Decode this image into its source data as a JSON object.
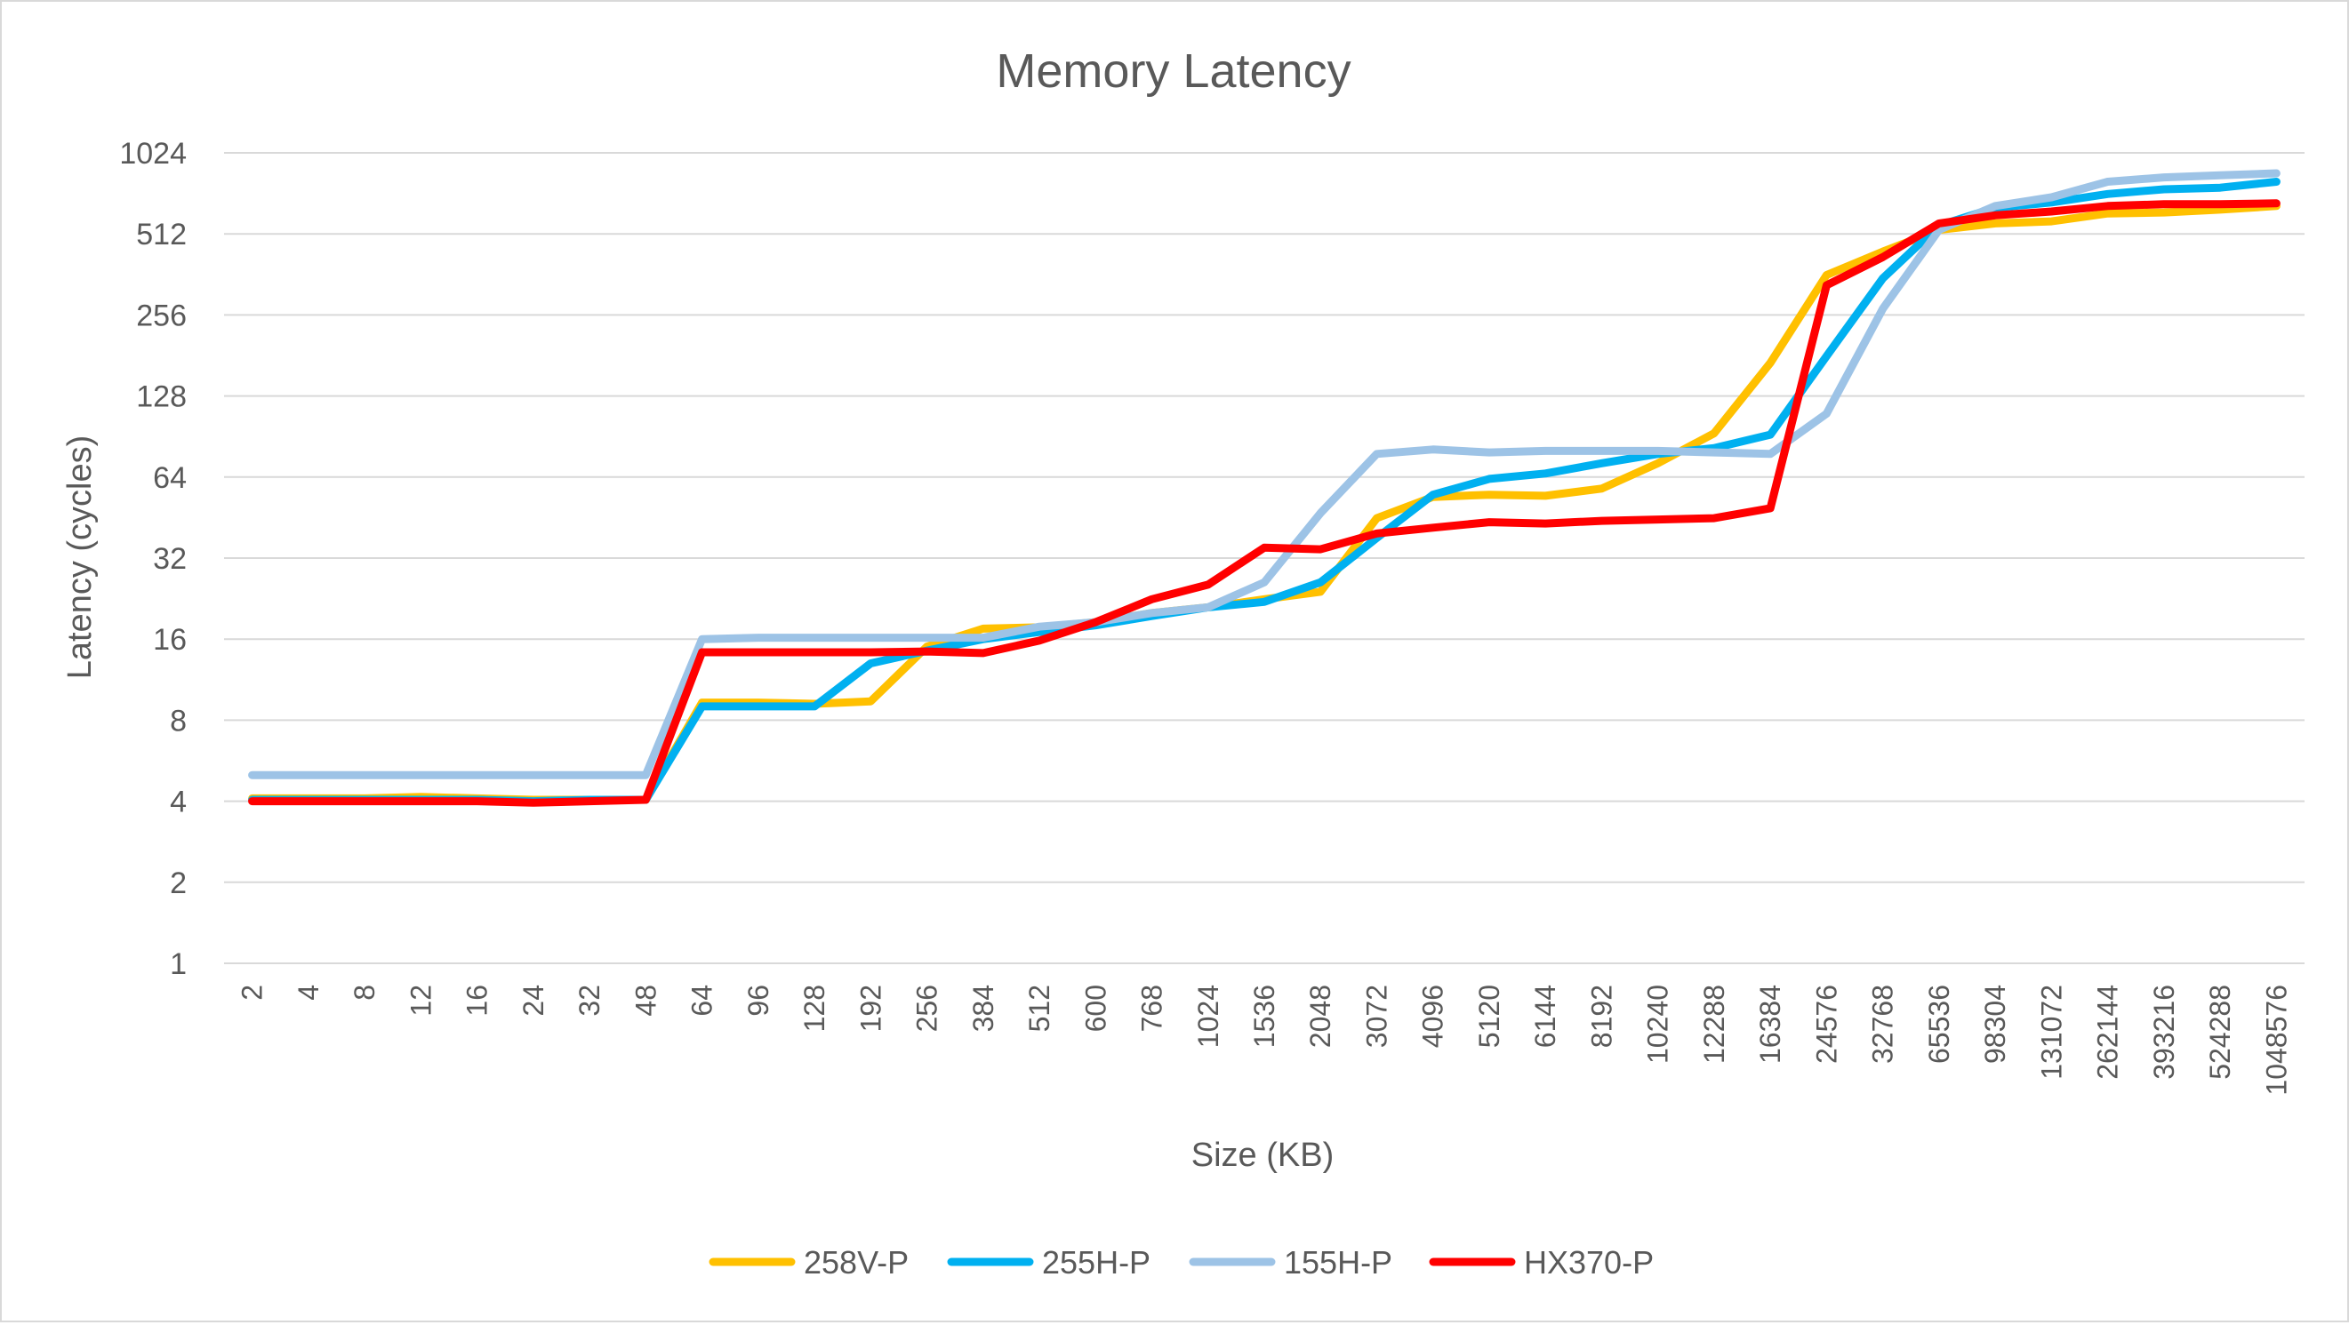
{
  "chart_data": {
    "type": "line",
    "title": "Memory Latency",
    "xlabel": "Size (KB)",
    "ylabel": "Latency (cycles)",
    "y_scale": "log2",
    "ylim": [
      1,
      1024
    ],
    "y_ticks": [
      1,
      2,
      4,
      8,
      16,
      32,
      64,
      128,
      256,
      512,
      1024
    ],
    "grid": true,
    "legend_position": "bottom",
    "categories": [
      "2",
      "4",
      "8",
      "12",
      "16",
      "24",
      "32",
      "48",
      "64",
      "96",
      "128",
      "192",
      "256",
      "384",
      "512",
      "600",
      "768",
      "1024",
      "1536",
      "2048",
      "3072",
      "4096",
      "5120",
      "6144",
      "8192",
      "10240",
      "12288",
      "16384",
      "24576",
      "32768",
      "65536",
      "98304",
      "131072",
      "262144",
      "393216",
      "524288",
      "1048576"
    ],
    "series": [
      {
        "name": "258V-P",
        "color": "#FFC000",
        "values": [
          4.1,
          4.1,
          4.1,
          4.15,
          4.1,
          4.05,
          4.05,
          4.05,
          9.3,
          9.3,
          9.2,
          9.4,
          15.0,
          17.5,
          17.7,
          18.5,
          20.0,
          21.0,
          22.5,
          24.0,
          45.0,
          54.0,
          55.0,
          54.5,
          58.0,
          72.0,
          93.0,
          170.0,
          360.0,
          440.0,
          530.0,
          560.0,
          570.0,
          610.0,
          615.0,
          630.0,
          650.0
        ]
      },
      {
        "name": "255H-P",
        "color": "#00B0F0",
        "values": [
          4.05,
          4.05,
          4.05,
          4.05,
          4.05,
          4.0,
          4.05,
          4.05,
          9.0,
          9.0,
          9.0,
          13.0,
          14.5,
          16.0,
          17.0,
          18.0,
          19.5,
          21.0,
          22.0,
          26.0,
          38.0,
          55.0,
          63.0,
          66.0,
          72.0,
          78.0,
          82.0,
          92.0,
          180.0,
          350.0,
          550.0,
          640.0,
          670.0,
          720.0,
          750.0,
          760.0,
          800.0
        ]
      },
      {
        "name": "155H-P",
        "color": "#9DC3E6",
        "values": [
          5.0,
          5.0,
          5.0,
          5.0,
          5.0,
          5.0,
          5.0,
          5.0,
          16.0,
          16.2,
          16.2,
          16.2,
          16.2,
          16.2,
          17.8,
          18.5,
          20.0,
          21.0,
          26.0,
          47.0,
          78.0,
          81.0,
          79.0,
          80.0,
          80.0,
          80.0,
          79.0,
          78.0,
          110.0,
          270.0,
          530.0,
          650.0,
          700.0,
          800.0,
          830.0,
          845.0,
          860.0
        ]
      },
      {
        "name": "HX370-P",
        "color": "#FF0000",
        "values": [
          4.0,
          4.0,
          4.0,
          4.0,
          4.0,
          3.95,
          4.0,
          4.05,
          14.3,
          14.3,
          14.3,
          14.3,
          14.4,
          14.2,
          15.8,
          18.5,
          22.5,
          25.5,
          35.0,
          34.5,
          39.5,
          41.5,
          43.5,
          43.0,
          44.0,
          44.5,
          45.0,
          49.0,
          330.0,
          420.0,
          560.0,
          600.0,
          620.0,
          650.0,
          660.0,
          660.0,
          665.0
        ]
      }
    ]
  }
}
